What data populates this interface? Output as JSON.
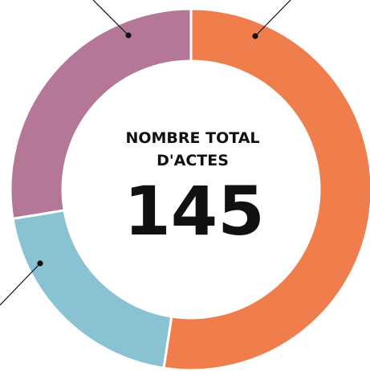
{
  "chart_data": {
    "type": "donut",
    "values": [
      76,
      29,
      40
    ],
    "colors": [
      "#f07e4c",
      "#89c2d3",
      "#b57797"
    ],
    "center_label": [
      "NOMBRE TOTAL",
      "D'ACTES"
    ],
    "center_value": 145
  }
}
